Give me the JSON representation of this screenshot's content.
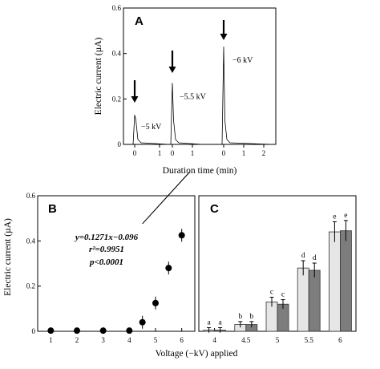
{
  "chart_data": [
    {
      "panel": "A",
      "type": "line",
      "ylabel": "Electric current (µA)",
      "xlabel": "Duration time (min)",
      "ylim": [
        0,
        0.6
      ],
      "y_ticks": [
        "0",
        "0.2",
        "0.4",
        "0.6"
      ],
      "grid": false,
      "series": [
        {
          "name": "−5 kV",
          "x_ticks": [
            "0",
            "1"
          ],
          "peak_time": 0,
          "peak_current": 0.13
        },
        {
          "name": "−5.5 kV",
          "x_ticks": [
            "0",
            "1"
          ],
          "peak_time": 0,
          "peak_current": 0.27
        },
        {
          "name": "−6 kV",
          "x_ticks": [
            "0",
            "1",
            "2"
          ],
          "peak_time": 0,
          "peak_current": 0.43
        }
      ]
    },
    {
      "panel": "B",
      "type": "scatter",
      "ylabel": "Electric current (µA)",
      "xlim": [
        0.5,
        6.5
      ],
      "ylim": [
        0,
        0.6
      ],
      "x_ticks": [
        "1",
        "2",
        "3",
        "4",
        "5",
        "6"
      ],
      "y_ticks": [
        "0",
        "0.2",
        "0.4",
        "0.6"
      ],
      "grid": false,
      "x": [
        1,
        2,
        3,
        4,
        4.5,
        5,
        5.5,
        6
      ],
      "y": [
        0.003,
        0.003,
        0.003,
        0.003,
        0.04,
        0.125,
        0.28,
        0.425
      ],
      "fit": {
        "slope": 0.1271,
        "intercept": -0.096
      },
      "annotations": [
        "y=0.1271x−0.096",
        "r²=0.9951",
        "p<0.0001"
      ]
    },
    {
      "panel": "C",
      "type": "bar",
      "categories": [
        "4",
        "4.5",
        "5",
        "5.5",
        "6"
      ],
      "ylim": [
        0,
        0.6
      ],
      "grid": false,
      "series": [
        {
          "values": [
            0.005,
            0.03,
            0.13,
            0.28,
            0.44
          ],
          "letters": [
            "a",
            "b",
            "c",
            "d",
            "e"
          ],
          "color": "#e6e6e6"
        },
        {
          "values": [
            0.005,
            0.03,
            0.12,
            0.27,
            0.445
          ],
          "letters": [
            "a",
            "b",
            "c",
            "d",
            "e"
          ],
          "color": "#7d7d7d"
        }
      ]
    }
  ],
  "shared_xlabel": "Voltage (−kV) applied"
}
